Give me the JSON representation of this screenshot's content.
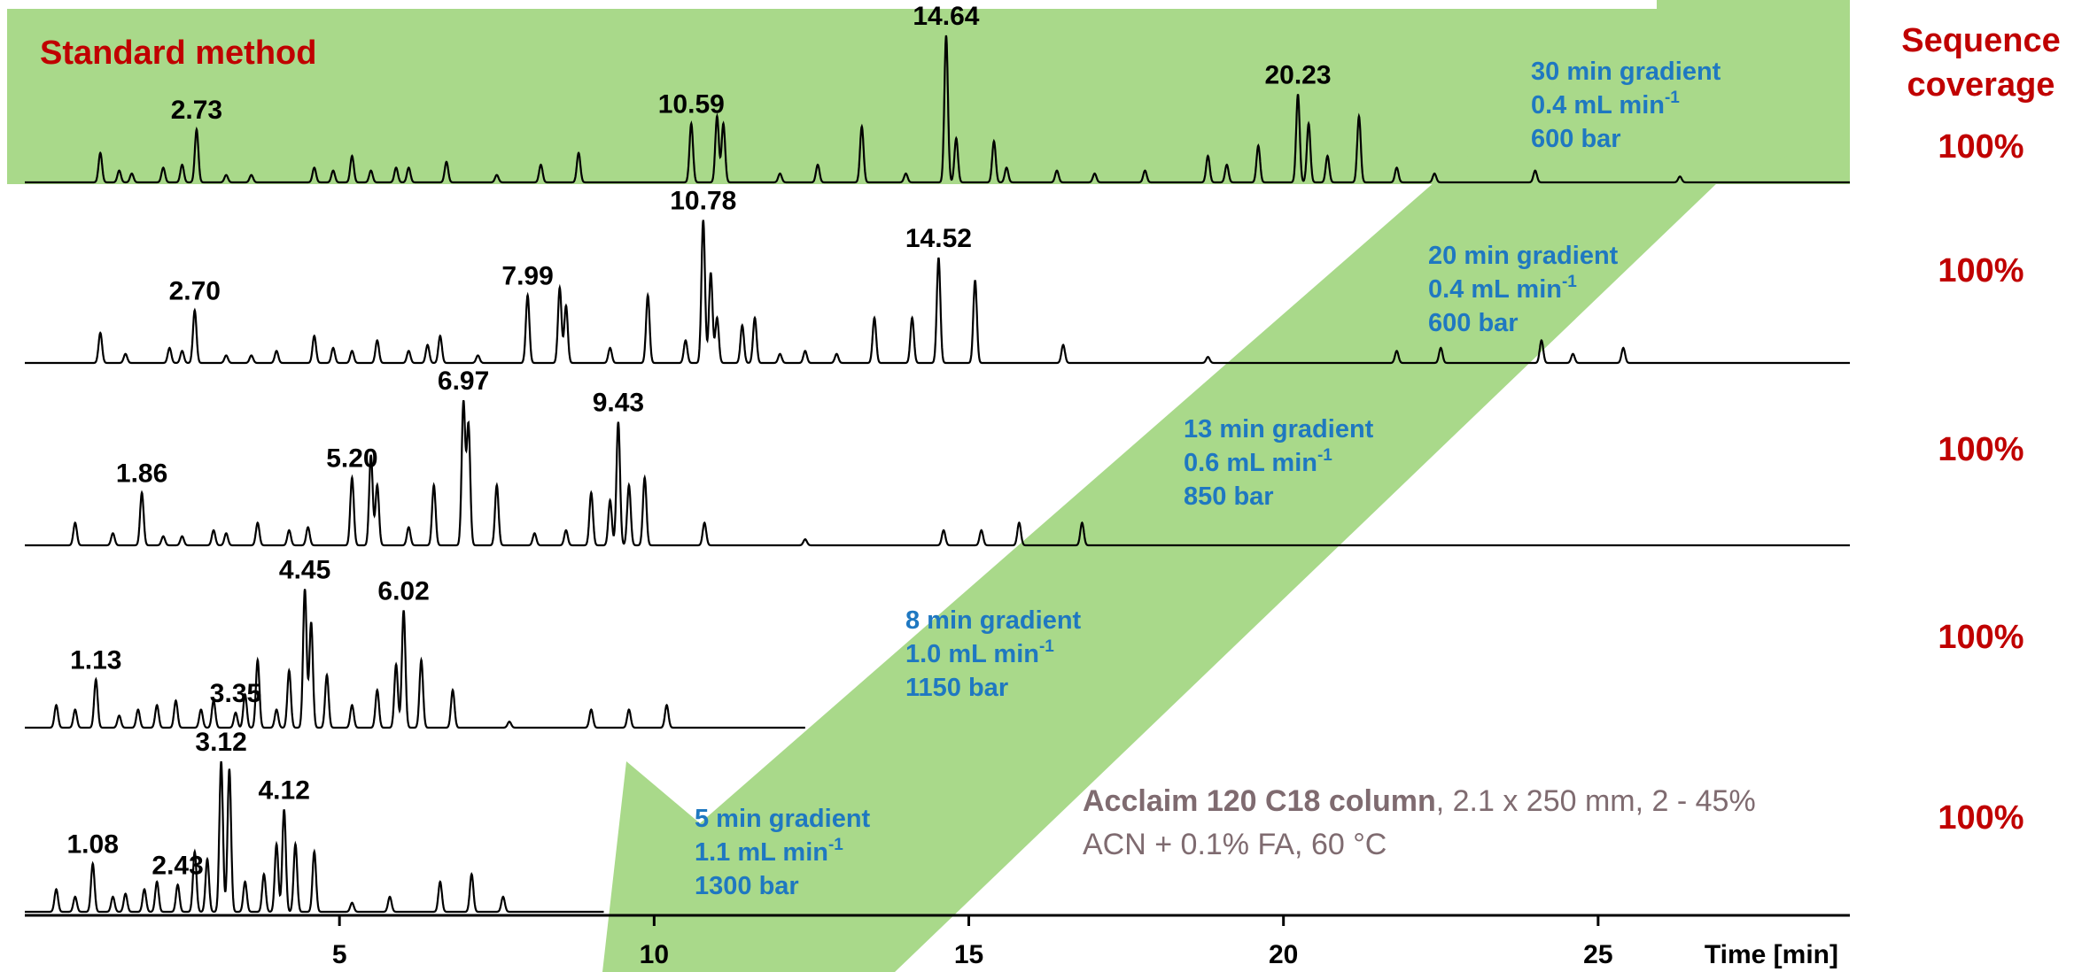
{
  "colors": {
    "band": "#a9d98a",
    "trace": "#000000",
    "condition_text": "#1f78c1",
    "coverage_text": "#c00000",
    "column_text": "#7f6b70"
  },
  "chart_data": {
    "type": "line",
    "title": "Standard method",
    "xlabel": "Time [min]",
    "xlim": [
      0,
      29
    ],
    "xticks": [
      5,
      10,
      15,
      20,
      25
    ],
    "coverage_header": [
      "Sequence",
      "coverage"
    ],
    "column_info": {
      "name": "Acclaim 120 C18 column",
      "details_line1": ", 2.1 x 250 mm, 2 - 45%",
      "details_line2": "ACN + 0.1% FA, 60 °C"
    },
    "series": [
      {
        "gradient": "30 min gradient",
        "flow_value": "0.4 mL min",
        "flow_exp": "-1",
        "pressure": "600 bar",
        "coverage": "100%",
        "end_time": 29,
        "peaks": [
          {
            "t": 1.2,
            "h": 0.2
          },
          {
            "t": 1.5,
            "h": 0.08
          },
          {
            "t": 1.7,
            "h": 0.06
          },
          {
            "t": 2.2,
            "h": 0.1
          },
          {
            "t": 2.5,
            "h": 0.12
          },
          {
            "t": 2.73,
            "h": 0.36
          },
          {
            "t": 3.2,
            "h": 0.05
          },
          {
            "t": 3.6,
            "h": 0.05
          },
          {
            "t": 4.6,
            "h": 0.1
          },
          {
            "t": 4.9,
            "h": 0.08
          },
          {
            "t": 5.2,
            "h": 0.18
          },
          {
            "t": 5.5,
            "h": 0.08
          },
          {
            "t": 5.9,
            "h": 0.1
          },
          {
            "t": 6.1,
            "h": 0.1
          },
          {
            "t": 6.7,
            "h": 0.14
          },
          {
            "t": 7.5,
            "h": 0.05
          },
          {
            "t": 8.2,
            "h": 0.12
          },
          {
            "t": 8.8,
            "h": 0.2
          },
          {
            "t": 10.59,
            "h": 0.4
          },
          {
            "t": 11.0,
            "h": 0.45
          },
          {
            "t": 11.1,
            "h": 0.4
          },
          {
            "t": 12.0,
            "h": 0.06
          },
          {
            "t": 12.6,
            "h": 0.12
          },
          {
            "t": 13.3,
            "h": 0.38
          },
          {
            "t": 14.0,
            "h": 0.06
          },
          {
            "t": 14.64,
            "h": 1.0
          },
          {
            "t": 14.8,
            "h": 0.3
          },
          {
            "t": 15.4,
            "h": 0.28
          },
          {
            "t": 15.6,
            "h": 0.1
          },
          {
            "t": 16.4,
            "h": 0.08
          },
          {
            "t": 17.0,
            "h": 0.06
          },
          {
            "t": 17.8,
            "h": 0.08
          },
          {
            "t": 18.8,
            "h": 0.18
          },
          {
            "t": 19.1,
            "h": 0.12
          },
          {
            "t": 19.6,
            "h": 0.25
          },
          {
            "t": 20.23,
            "h": 0.6
          },
          {
            "t": 20.4,
            "h": 0.4
          },
          {
            "t": 20.7,
            "h": 0.18
          },
          {
            "t": 21.2,
            "h": 0.45
          },
          {
            "t": 21.8,
            "h": 0.1
          },
          {
            "t": 22.4,
            "h": 0.06
          },
          {
            "t": 24.0,
            "h": 0.08
          },
          {
            "t": 26.3,
            "h": 0.04
          }
        ],
        "labels": [
          {
            "t": 2.73,
            "text": "2.73"
          },
          {
            "t": 10.59,
            "text": "10.59"
          },
          {
            "t": 14.64,
            "text": "14.64"
          },
          {
            "t": 20.23,
            "text": "20.23"
          }
        ]
      },
      {
        "gradient": "20 min gradient",
        "flow_value": "0.4 mL min",
        "flow_exp": "-1",
        "pressure": "600 bar",
        "coverage": "100%",
        "end_time": 29,
        "peaks": [
          {
            "t": 1.2,
            "h": 0.2
          },
          {
            "t": 1.6,
            "h": 0.06
          },
          {
            "t": 2.3,
            "h": 0.1
          },
          {
            "t": 2.5,
            "h": 0.08
          },
          {
            "t": 2.7,
            "h": 0.35
          },
          {
            "t": 3.2,
            "h": 0.05
          },
          {
            "t": 3.6,
            "h": 0.05
          },
          {
            "t": 4.0,
            "h": 0.08
          },
          {
            "t": 4.6,
            "h": 0.18
          },
          {
            "t": 4.9,
            "h": 0.1
          },
          {
            "t": 5.2,
            "h": 0.08
          },
          {
            "t": 5.6,
            "h": 0.15
          },
          {
            "t": 6.1,
            "h": 0.08
          },
          {
            "t": 6.4,
            "h": 0.12
          },
          {
            "t": 6.6,
            "h": 0.18
          },
          {
            "t": 7.2,
            "h": 0.05
          },
          {
            "t": 7.99,
            "h": 0.45
          },
          {
            "t": 8.5,
            "h": 0.5
          },
          {
            "t": 8.6,
            "h": 0.38
          },
          {
            "t": 9.3,
            "h": 0.1
          },
          {
            "t": 9.9,
            "h": 0.45
          },
          {
            "t": 10.5,
            "h": 0.15
          },
          {
            "t": 10.78,
            "h": 0.95
          },
          {
            "t": 10.9,
            "h": 0.6
          },
          {
            "t": 11.0,
            "h": 0.3
          },
          {
            "t": 11.4,
            "h": 0.25
          },
          {
            "t": 11.6,
            "h": 0.3
          },
          {
            "t": 12.0,
            "h": 0.06
          },
          {
            "t": 12.4,
            "h": 0.08
          },
          {
            "t": 12.9,
            "h": 0.06
          },
          {
            "t": 13.5,
            "h": 0.3
          },
          {
            "t": 14.1,
            "h": 0.3
          },
          {
            "t": 14.52,
            "h": 0.7
          },
          {
            "t": 15.1,
            "h": 0.55
          },
          {
            "t": 16.5,
            "h": 0.12
          },
          {
            "t": 18.8,
            "h": 0.04
          },
          {
            "t": 21.8,
            "h": 0.08
          },
          {
            "t": 22.5,
            "h": 0.1
          },
          {
            "t": 24.1,
            "h": 0.15
          },
          {
            "t": 24.6,
            "h": 0.06
          },
          {
            "t": 25.4,
            "h": 0.1
          }
        ],
        "labels": [
          {
            "t": 2.7,
            "text": "2.70"
          },
          {
            "t": 7.99,
            "text": "7.99"
          },
          {
            "t": 10.78,
            "text": "10.78"
          },
          {
            "t": 14.52,
            "text": "14.52"
          }
        ]
      },
      {
        "gradient": "13 min gradient",
        "flow_value": "0.6 mL min",
        "flow_exp": "-1",
        "pressure": "850 bar",
        "coverage": "100%",
        "end_time": 29,
        "peaks": [
          {
            "t": 0.8,
            "h": 0.15
          },
          {
            "t": 1.4,
            "h": 0.08
          },
          {
            "t": 1.86,
            "h": 0.35
          },
          {
            "t": 2.2,
            "h": 0.06
          },
          {
            "t": 2.5,
            "h": 0.06
          },
          {
            "t": 3.0,
            "h": 0.1
          },
          {
            "t": 3.2,
            "h": 0.08
          },
          {
            "t": 3.7,
            "h": 0.15
          },
          {
            "t": 4.2,
            "h": 0.1
          },
          {
            "t": 4.5,
            "h": 0.12
          },
          {
            "t": 5.2,
            "h": 0.45
          },
          {
            "t": 5.5,
            "h": 0.6
          },
          {
            "t": 5.6,
            "h": 0.4
          },
          {
            "t": 6.1,
            "h": 0.12
          },
          {
            "t": 6.5,
            "h": 0.4
          },
          {
            "t": 6.97,
            "h": 0.95
          },
          {
            "t": 7.05,
            "h": 0.8
          },
          {
            "t": 7.5,
            "h": 0.4
          },
          {
            "t": 8.1,
            "h": 0.08
          },
          {
            "t": 8.6,
            "h": 0.1
          },
          {
            "t": 9.0,
            "h": 0.35
          },
          {
            "t": 9.3,
            "h": 0.3
          },
          {
            "t": 9.43,
            "h": 0.82
          },
          {
            "t": 9.6,
            "h": 0.4
          },
          {
            "t": 9.85,
            "h": 0.45
          },
          {
            "t": 10.8,
            "h": 0.15
          },
          {
            "t": 12.4,
            "h": 0.04
          },
          {
            "t": 14.6,
            "h": 0.1
          },
          {
            "t": 15.2,
            "h": 0.1
          },
          {
            "t": 15.8,
            "h": 0.15
          },
          {
            "t": 16.8,
            "h": 0.15
          }
        ],
        "labels": [
          {
            "t": 1.86,
            "text": "1.86"
          },
          {
            "t": 5.2,
            "text": "5.20"
          },
          {
            "t": 6.97,
            "text": "6.97"
          },
          {
            "t": 9.43,
            "text": "9.43"
          }
        ]
      },
      {
        "gradient": "8 min gradient",
        "flow_value": "1.0 mL min",
        "flow_exp": "-1",
        "pressure": "1150 bar",
        "coverage": "100%",
        "end_time": 12.4,
        "peaks": [
          {
            "t": 0.5,
            "h": 0.15
          },
          {
            "t": 0.8,
            "h": 0.12
          },
          {
            "t": 1.13,
            "h": 0.32
          },
          {
            "t": 1.5,
            "h": 0.08
          },
          {
            "t": 1.8,
            "h": 0.12
          },
          {
            "t": 2.1,
            "h": 0.15
          },
          {
            "t": 2.4,
            "h": 0.18
          },
          {
            "t": 2.8,
            "h": 0.12
          },
          {
            "t": 3.0,
            "h": 0.18
          },
          {
            "t": 3.35,
            "h": 0.1
          },
          {
            "t": 3.5,
            "h": 0.22
          },
          {
            "t": 3.7,
            "h": 0.45
          },
          {
            "t": 4.0,
            "h": 0.12
          },
          {
            "t": 4.2,
            "h": 0.38
          },
          {
            "t": 4.45,
            "h": 0.92
          },
          {
            "t": 4.55,
            "h": 0.7
          },
          {
            "t": 4.8,
            "h": 0.35
          },
          {
            "t": 5.2,
            "h": 0.15
          },
          {
            "t": 5.6,
            "h": 0.25
          },
          {
            "t": 5.9,
            "h": 0.42
          },
          {
            "t": 6.02,
            "h": 0.78
          },
          {
            "t": 6.3,
            "h": 0.45
          },
          {
            "t": 6.8,
            "h": 0.25
          },
          {
            "t": 7.7,
            "h": 0.04
          },
          {
            "t": 9.0,
            "h": 0.12
          },
          {
            "t": 9.6,
            "h": 0.12
          },
          {
            "t": 10.2,
            "h": 0.15
          }
        ],
        "labels": [
          {
            "t": 1.13,
            "text": "1.13"
          },
          {
            "t": 3.35,
            "text": "3.35"
          },
          {
            "t": 4.45,
            "text": "4.45"
          },
          {
            "t": 6.02,
            "text": "6.02"
          }
        ]
      },
      {
        "gradient": "5 min gradient",
        "flow_value": "1.1 mL min",
        "flow_exp": "-1",
        "pressure": "1300 bar",
        "coverage": "100%",
        "end_time": 9.2,
        "peaks": [
          {
            "t": 0.5,
            "h": 0.15
          },
          {
            "t": 0.8,
            "h": 0.1
          },
          {
            "t": 1.08,
            "h": 0.32
          },
          {
            "t": 1.4,
            "h": 0.1
          },
          {
            "t": 1.6,
            "h": 0.12
          },
          {
            "t": 1.9,
            "h": 0.15
          },
          {
            "t": 2.1,
            "h": 0.2
          },
          {
            "t": 2.43,
            "h": 0.18
          },
          {
            "t": 2.7,
            "h": 0.4
          },
          {
            "t": 2.9,
            "h": 0.35
          },
          {
            "t": 3.12,
            "h": 1.0
          },
          {
            "t": 3.25,
            "h": 0.95
          },
          {
            "t": 3.5,
            "h": 0.2
          },
          {
            "t": 3.8,
            "h": 0.25
          },
          {
            "t": 4.0,
            "h": 0.45
          },
          {
            "t": 4.12,
            "h": 0.68
          },
          {
            "t": 4.3,
            "h": 0.45
          },
          {
            "t": 4.6,
            "h": 0.4
          },
          {
            "t": 5.2,
            "h": 0.06
          },
          {
            "t": 5.8,
            "h": 0.1
          },
          {
            "t": 6.6,
            "h": 0.2
          },
          {
            "t": 7.1,
            "h": 0.25
          },
          {
            "t": 7.6,
            "h": 0.1
          }
        ],
        "labels": [
          {
            "t": 1.08,
            "text": "1.08"
          },
          {
            "t": 2.43,
            "text": "2.43"
          },
          {
            "t": 3.12,
            "text": "3.12"
          },
          {
            "t": 4.12,
            "text": "4.12"
          }
        ]
      }
    ]
  }
}
